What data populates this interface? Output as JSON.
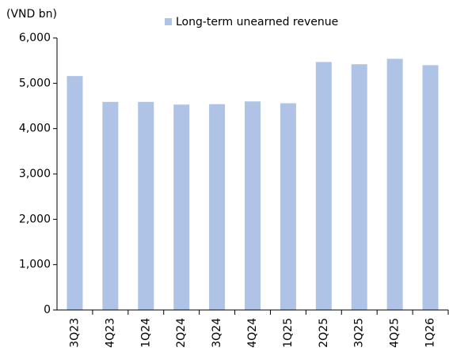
{
  "chart_data": {
    "type": "bar",
    "y_axis_label": "(VND bn)",
    "categories": [
      "3Q23",
      "4Q23",
      "1Q24",
      "2Q24",
      "3Q24",
      "4Q24",
      "1Q25",
      "2Q25",
      "3Q25",
      "4Q25",
      "1Q26"
    ],
    "series": [
      {
        "name": "Long-term unearned revenue",
        "color": "#aec3e6",
        "values": [
          5160,
          4590,
          4590,
          4530,
          4540,
          4600,
          4560,
          5470,
          5420,
          5540,
          5400
        ]
      }
    ],
    "ylim": [
      0,
      6000
    ],
    "yticks": [
      0,
      {
        "value": 1000,
        "label": "1,000"
      },
      {
        "value": 2000,
        "label": "2,000"
      },
      {
        "value": 3000,
        "label": "3,000"
      },
      {
        "value": 4000,
        "label": "4,000"
      },
      {
        "value": 5000,
        "label": "5,000"
      },
      {
        "value": 6000,
        "label": "6,000"
      }
    ],
    "grid": false,
    "legend": "top"
  }
}
